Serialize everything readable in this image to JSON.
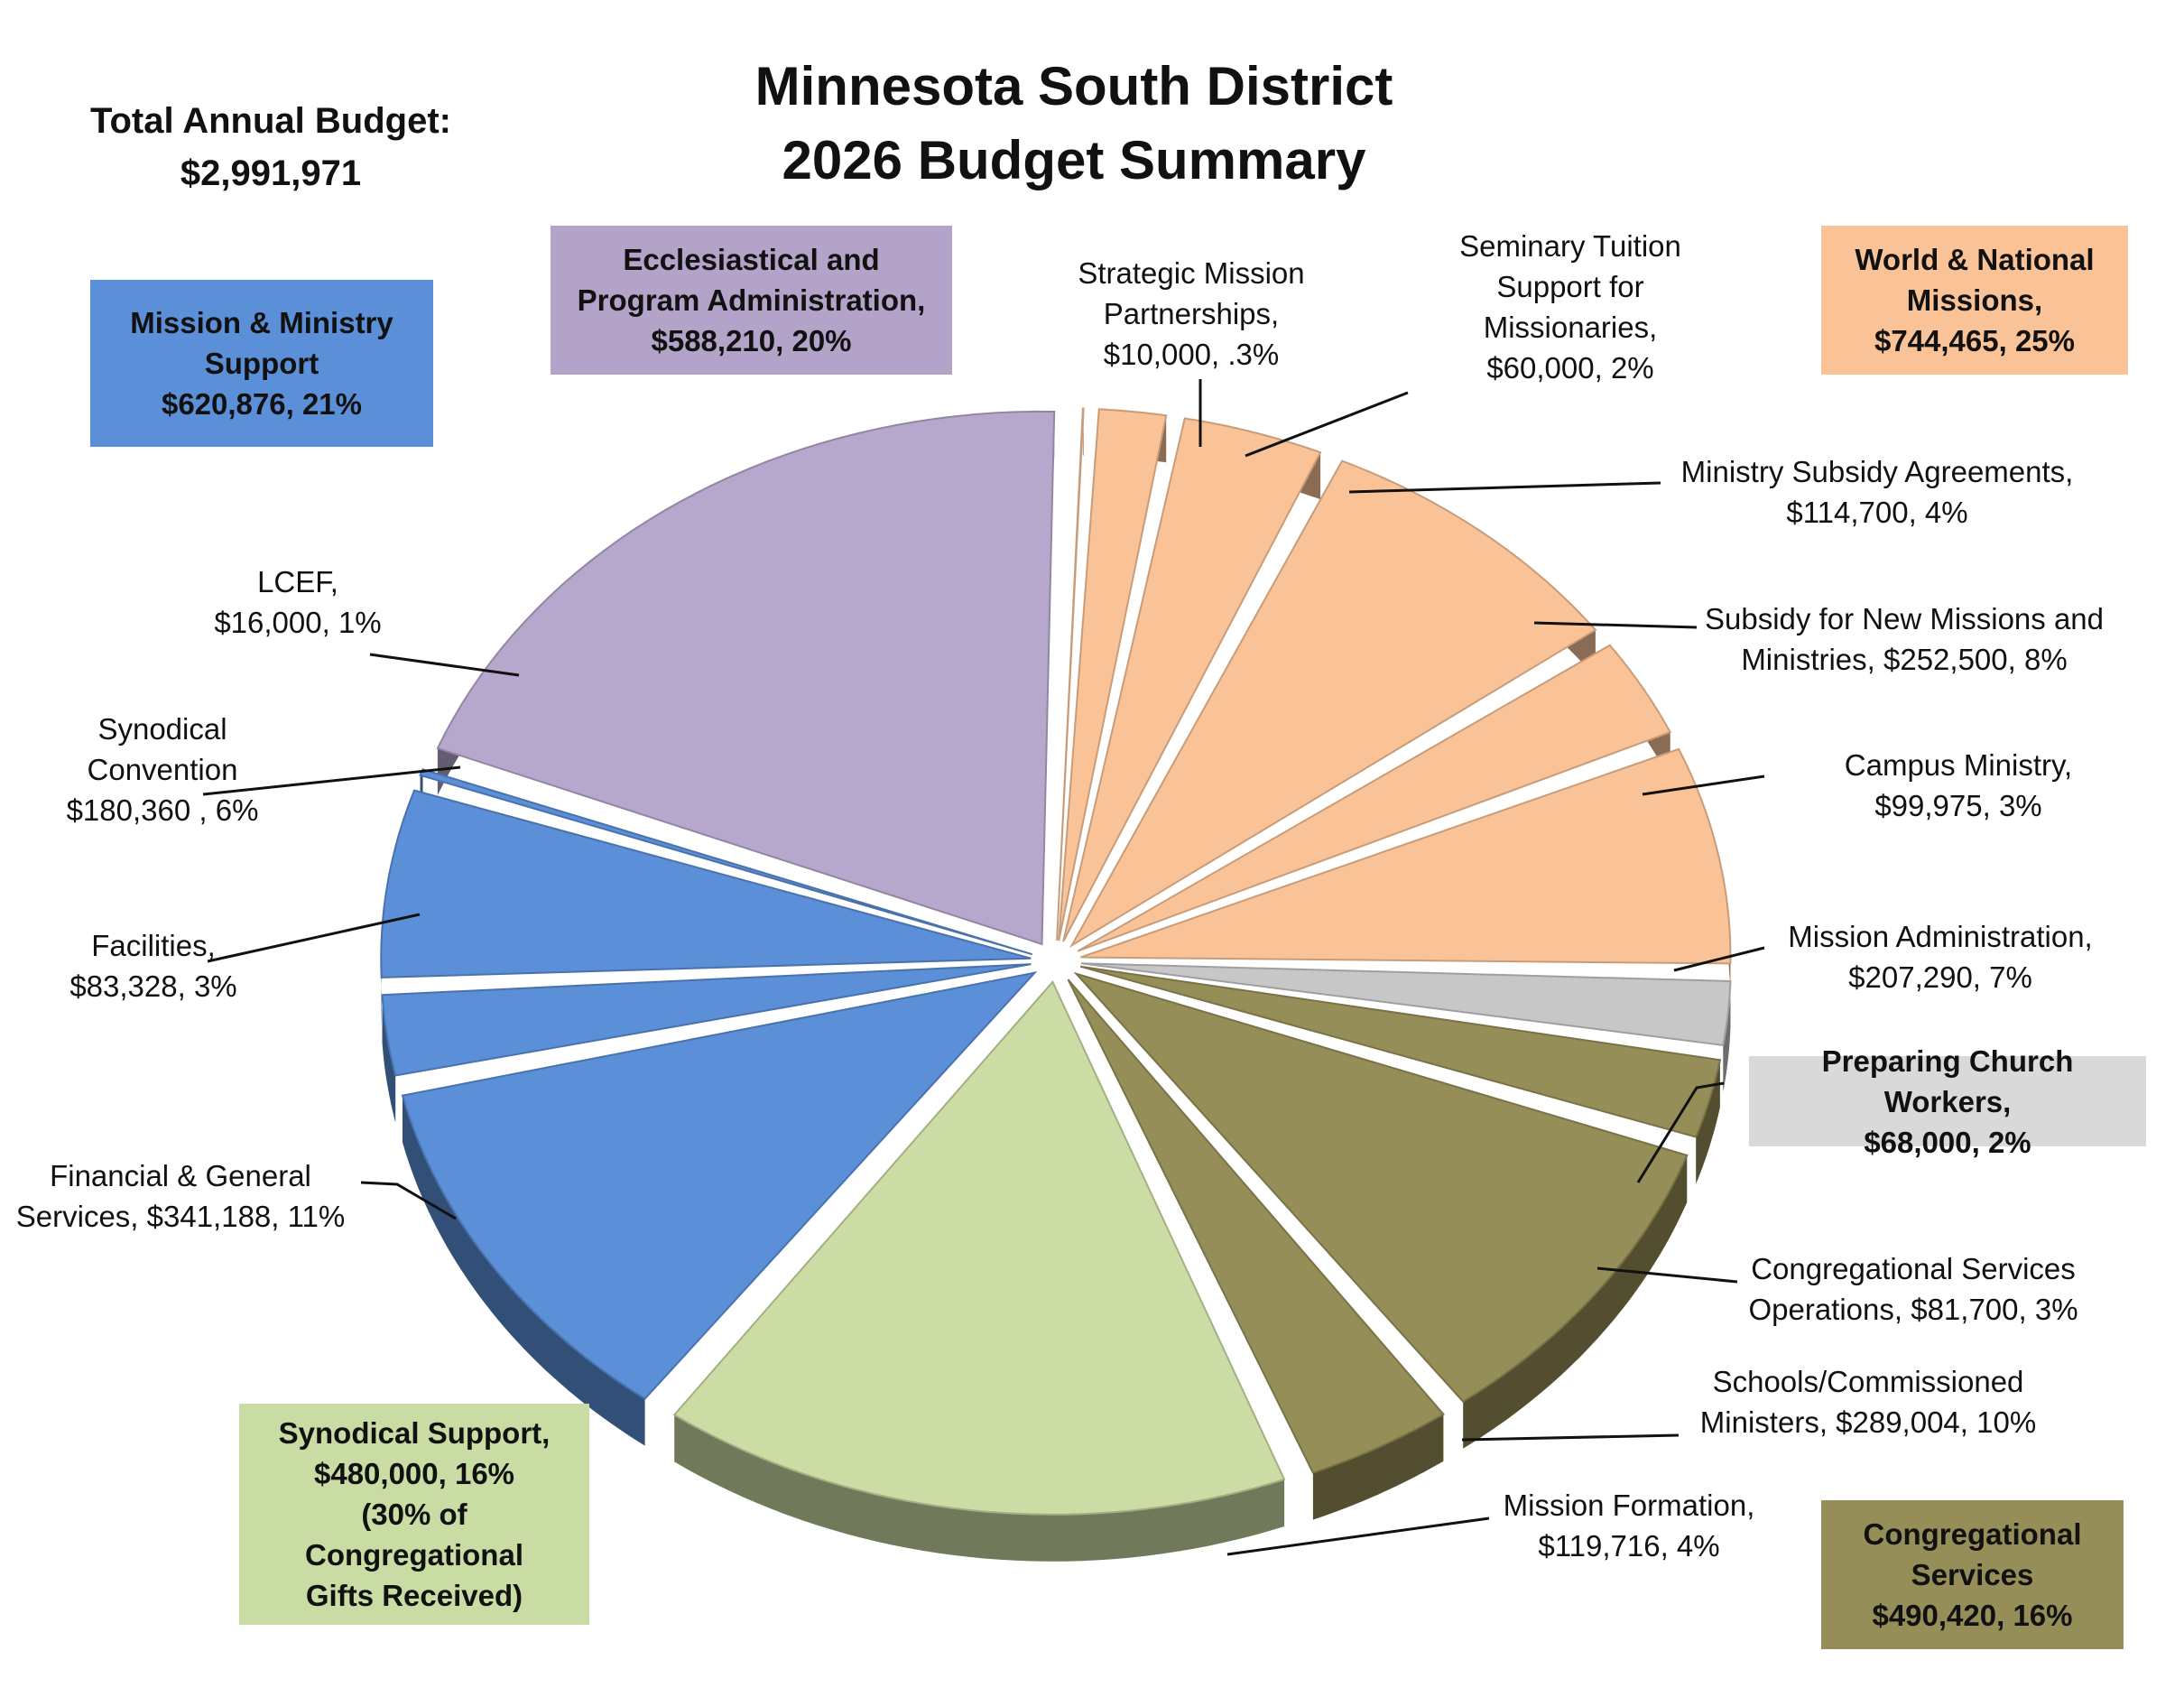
{
  "title_line1": "Minnesota South District",
  "title_line2": "2026 Budget Summary",
  "total_label": "Total Annual Budget:",
  "total_value": "$2,991,971",
  "colors": {
    "mission_ministry_support": "#5b8fd8",
    "ecclesiastical": "#b6a7cc",
    "world_national": "#fac397",
    "preparing_church_workers": "#c7c7c7",
    "congregational_services": "#968e58",
    "synodical_support": "#cbdca4"
  },
  "group_boxes": {
    "mission_ministry_support": "Mission &  Ministry\nSupport\n$620,876, 21%",
    "ecclesiastical": "Ecclesiastical and\nProgram Administration,\n$588,210, 20%",
    "world_national": "World & National\nMissions,\n$744,465, 25%",
    "preparing_church_workers": "Preparing Church Workers,\n$68,000, 2%",
    "congregational_services": "Congregational\nServices\n$490,420, 16%",
    "synodical_support": "Synodical Support,\n$480,000, 16%\n(30% of Congregational\nGifts Received)"
  },
  "slice_labels": {
    "strategic": "Strategic Mission\nPartnerships,\n$10,000, .3%",
    "seminary": "Seminary Tuition\nSupport for\nMissionaries,\n$60,000, 2%",
    "subsidy_agreements": "Ministry Subsidy Agreements,\n$114,700, 4%",
    "new_missions": "Subsidy for New Missions and\nMinistries,  $252,500, 8%",
    "campus": "Campus Ministry,\n$99,975, 3%",
    "mission_admin": "Mission Administration,\n$207,290, 7%",
    "cong_ops": "Congregational Services\nOperations,  $81,700, 3%",
    "schools": "Schools/Commissioned\nMinisters,  $289,004, 10%",
    "formation": "Mission Formation,\n$119,716, 4%",
    "lcef": "LCEF,\n$16,000, 1%",
    "convention": "Synodical\nConvention\n$180,360 , 6%",
    "facilities": "Facilities,\n$83,328, 3%",
    "financial": "Financial & General\nServices,  $341,188, 11%"
  },
  "chart_data": {
    "type": "pie",
    "title": "Minnesota South District 2026 Budget Summary",
    "total": 2991971,
    "slices": [
      {
        "label": "Strategic Mission Partnerships",
        "value": 10000,
        "percent": 0.3,
        "group": "World & National Missions"
      },
      {
        "label": "Seminary Tuition Support for Missionaries",
        "value": 60000,
        "percent": 2,
        "group": "World & National Missions"
      },
      {
        "label": "Ministry Subsidy Agreements",
        "value": 114700,
        "percent": 4,
        "group": "World & National Missions"
      },
      {
        "label": "Subsidy for New Missions and Ministries",
        "value": 252500,
        "percent": 8,
        "group": "World & National Missions"
      },
      {
        "label": "Campus Ministry",
        "value": 99975,
        "percent": 3,
        "group": "World & National Missions"
      },
      {
        "label": "Mission Administration",
        "value": 207290,
        "percent": 7,
        "group": "World & National Missions"
      },
      {
        "label": "Preparing Church Workers",
        "value": 68000,
        "percent": 2,
        "group": "Preparing Church Workers"
      },
      {
        "label": "Congregational Services Operations",
        "value": 81700,
        "percent": 3,
        "group": "Congregational Services"
      },
      {
        "label": "Schools/Commissioned Ministers",
        "value": 289004,
        "percent": 10,
        "group": "Congregational Services"
      },
      {
        "label": "Mission Formation",
        "value": 119716,
        "percent": 4,
        "group": "Congregational Services"
      },
      {
        "label": "Synodical Support",
        "value": 480000,
        "percent": 16,
        "group": "Synodical Support"
      },
      {
        "label": "Financial & General Services",
        "value": 341188,
        "percent": 11,
        "group": "Mission & Ministry Support"
      },
      {
        "label": "Facilities",
        "value": 83328,
        "percent": 3,
        "group": "Mission & Ministry Support"
      },
      {
        "label": "Synodical Convention",
        "value": 180360,
        "percent": 6,
        "group": "Mission & Ministry Support"
      },
      {
        "label": "LCEF",
        "value": 16000,
        "percent": 1,
        "group": "Mission & Ministry Support"
      },
      {
        "label": "Ecclesiastical and Program Administration",
        "value": 588210,
        "percent": 20,
        "group": "Ecclesiastical and Program Administration"
      }
    ]
  }
}
